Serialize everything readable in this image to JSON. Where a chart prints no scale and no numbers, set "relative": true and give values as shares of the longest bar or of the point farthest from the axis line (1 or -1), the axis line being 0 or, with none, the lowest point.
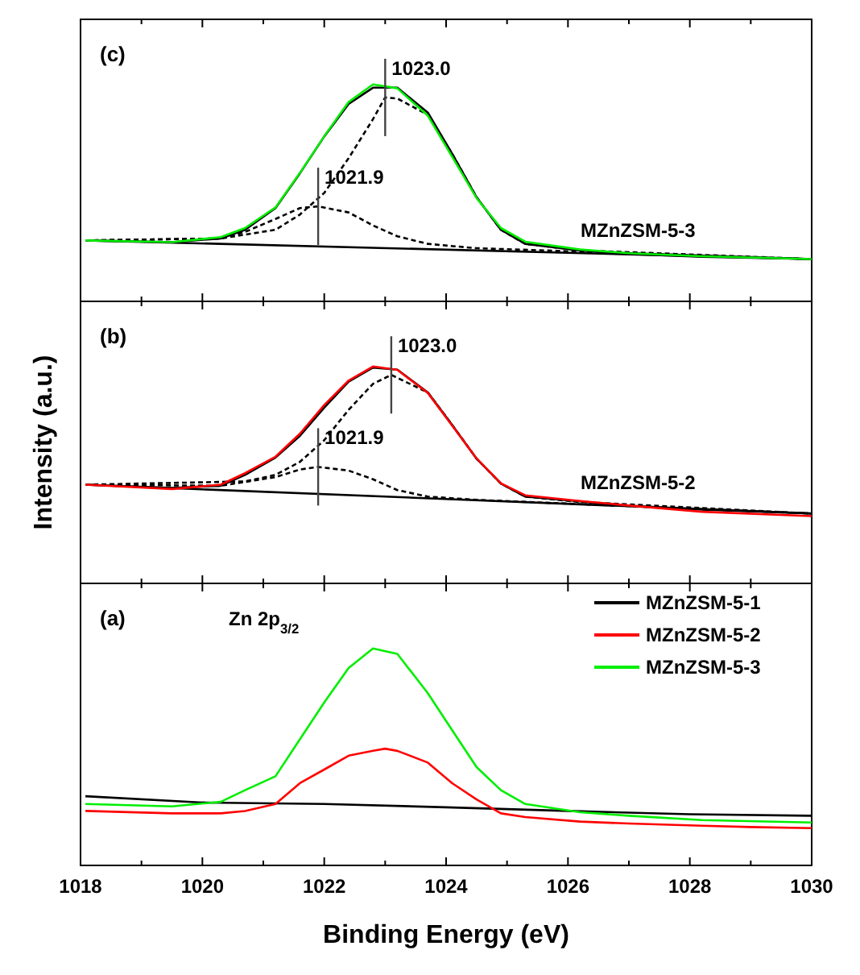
{
  "chart_data": [
    {
      "type": "line",
      "relative": true,
      "legend": false,
      "tick_labels": false,
      "xlim": [
        1018,
        1030
      ],
      "xticks": [
        1018,
        {
          "value": 1019,
          "label": null
        },
        1020,
        {
          "value": 1021,
          "label": null
        },
        1022,
        {
          "value": 1023,
          "label": null
        },
        1024,
        {
          "value": 1025,
          "label": null
        },
        1026,
        {
          "value": 1027,
          "label": null
        },
        1028,
        {
          "value": 1029,
          "label": null
        },
        1030
      ],
      "annotations": [
        "(c)",
        {
          "text": "1023.0",
          "x": 1023.0,
          "y": 0.94
        },
        {
          "text": "1021.9",
          "x": 1021.9,
          "y": 0.438
        }
      ],
      "series": [
        {
          "name": "MZnZSM-5-3",
          "color": "#00ee00",
          "x": [
            1018.08,
            1019.5,
            1020.3,
            1020.7,
            1021.2,
            1021.6,
            1022.0,
            1022.4,
            1022.8,
            1023.2,
            1023.7,
            1024.1,
            1024.5,
            1024.9,
            1025.3,
            1026.2,
            1027.0,
            1028.2,
            1030
          ],
          "values": [
            0.281,
            0.273,
            0.296,
            0.338,
            0.433,
            0.592,
            0.761,
            0.919,
            1.0,
            0.982,
            0.856,
            0.666,
            0.476,
            0.338,
            0.275,
            0.239,
            0.222,
            0.208,
            0.195
          ]
        },
        {
          "color": "#000000",
          "x": [
            1018.08,
            1019.5,
            1020.3,
            1020.7,
            1021.2,
            1021.6,
            1022.0,
            1022.4,
            1022.8,
            1023.2,
            1023.7,
            1024.1,
            1024.5,
            1024.9,
            1025.3,
            1026.2,
            1027.0,
            1028.2,
            1030
          ],
          "values": [
            0.281,
            0.273,
            0.29,
            0.33,
            0.43,
            0.59,
            0.76,
            0.91,
            0.985,
            0.985,
            0.87,
            0.68,
            0.48,
            0.33,
            0.265,
            0.235,
            0.218,
            0.205,
            0.195
          ]
        },
        {
          "color": "#000000",
          "line_style": "dashed",
          "x": [
            1018.08,
            1020.3,
            1021.2,
            1021.6,
            1022.0,
            1022.4,
            1022.8,
            1023.0,
            1023.2,
            1023.7,
            1024.1,
            1024.5,
            1024.9,
            1025.3,
            1026.2,
            1030
          ],
          "values": [
            0.281,
            0.29,
            0.33,
            0.4,
            0.5,
            0.66,
            0.84,
            0.94,
            0.935,
            0.86,
            0.68,
            0.48,
            0.33,
            0.265,
            0.235,
            0.195
          ]
        },
        {
          "color": "#000000",
          "line_style": "dashed",
          "x": [
            1018.08,
            1020.3,
            1020.7,
            1021.2,
            1021.6,
            1021.9,
            1022.4,
            1022.8,
            1023.2,
            1023.7,
            1024.5,
            1030
          ],
          "values": [
            0.281,
            0.29,
            0.32,
            0.38,
            0.43,
            0.438,
            0.41,
            0.35,
            0.3,
            0.265,
            0.245,
            0.195
          ]
        },
        {
          "color": "#000000",
          "x": [
            1018.08,
            1030
          ],
          "values": [
            0.281,
            0.195
          ]
        }
      ]
    },
    {
      "type": "line",
      "relative": true,
      "legend": false,
      "tick_labels": false,
      "ylabel": "Intensity (a.u.)",
      "xlim": [
        1018,
        1030
      ],
      "xticks": [
        1018,
        {
          "value": 1019,
          "label": null
        },
        1020,
        {
          "value": 1021,
          "label": null
        },
        1022,
        {
          "value": 1023,
          "label": null
        },
        1024,
        {
          "value": 1025,
          "label": null
        },
        1026,
        {
          "value": 1027,
          "label": null
        },
        1028,
        {
          "value": 1029,
          "label": null
        },
        1030
      ],
      "annotations": [
        "(b)",
        {
          "text": "1023.0",
          "x": 1023.1,
          "y": 0.961
        },
        {
          "text": "1021.9",
          "x": 1021.9,
          "y": 0.537
        }
      ],
      "series": [
        {
          "name": "MZnZSM-5-2",
          "color": "#ff0000",
          "x": [
            1018.08,
            1019.5,
            1020.3,
            1020.7,
            1021.2,
            1021.6,
            1022.0,
            1022.4,
            1022.8,
            1023.2,
            1023.7,
            1024.1,
            1024.5,
            1024.9,
            1025.3,
            1026.2,
            1027.0,
            1028.2,
            1030
          ],
          "values": [
            0.455,
            0.435,
            0.455,
            0.508,
            0.584,
            0.69,
            0.822,
            0.935,
            1.0,
            0.984,
            0.878,
            0.727,
            0.576,
            0.461,
            0.406,
            0.38,
            0.359,
            0.33,
            0.31
          ]
        },
        {
          "color": "#000000",
          "x": [
            1018.08,
            1019.5,
            1020.3,
            1020.7,
            1021.2,
            1021.6,
            1022.0,
            1022.4,
            1022.8,
            1023.2,
            1023.7,
            1024.1,
            1024.5,
            1024.9,
            1025.3,
            1026.2,
            1027.0,
            1028.2,
            1030
          ],
          "values": [
            0.455,
            0.44,
            0.45,
            0.5,
            0.58,
            0.68,
            0.81,
            0.93,
            0.995,
            0.985,
            0.88,
            0.73,
            0.575,
            0.46,
            0.4,
            0.378,
            0.358,
            0.34,
            0.322
          ]
        },
        {
          "color": "#000000",
          "line_style": "dashed",
          "x": [
            1018.08,
            1020.7,
            1021.2,
            1021.6,
            1022.0,
            1022.4,
            1022.8,
            1023.1,
            1023.7,
            1024.1,
            1024.5,
            1024.9,
            1025.3,
            1026.2,
            1030
          ],
          "values": [
            0.455,
            0.47,
            0.5,
            0.56,
            0.66,
            0.8,
            0.92,
            0.961,
            0.88,
            0.73,
            0.575,
            0.46,
            0.4,
            0.375,
            0.322
          ]
        },
        {
          "color": "#000000",
          "line_style": "dashed",
          "x": [
            1018.08,
            1020.3,
            1021.2,
            1021.6,
            1021.9,
            1022.4,
            1022.8,
            1023.2,
            1023.7,
            1024.5,
            1030
          ],
          "values": [
            0.455,
            0.45,
            0.49,
            0.525,
            0.537,
            0.52,
            0.48,
            0.43,
            0.4,
            0.385,
            0.322
          ]
        },
        {
          "color": "#000000",
          "x": [
            1018.08,
            1030
          ],
          "values": [
            0.455,
            0.322
          ]
        }
      ]
    },
    {
      "type": "line",
      "relative": true,
      "legend": "top right",
      "xlabel": "Binding Energy (eV)",
      "xlim": [
        1018,
        1030
      ],
      "xticks": [
        1018,
        {
          "value": 1019,
          "label": null
        },
        1020,
        {
          "value": 1021,
          "label": null
        },
        1022,
        {
          "value": 1023,
          "label": null
        },
        1024,
        {
          "value": 1025,
          "label": null
        },
        1026,
        {
          "value": 1027,
          "label": null
        },
        1028,
        {
          "value": 1029,
          "label": null
        },
        1030
      ],
      "annotations": [
        "(a)",
        "Zn 2p$_{3/2}$"
      ],
      "series": [
        {
          "name": "MZnZSM-5-1",
          "color": "#000000",
          "x": [
            1018.08,
            1020,
            1022,
            1024,
            1026,
            1028,
            1030
          ],
          "values": [
            0.319,
            0.29,
            0.283,
            0.268,
            0.251,
            0.236,
            0.229
          ]
        },
        {
          "name": "MZnZSM-5-2",
          "color": "#ff0000",
          "x": [
            1018.08,
            1019.5,
            1020.3,
            1020.7,
            1021.2,
            1021.6,
            1022.0,
            1022.4,
            1022.8,
            1023.0,
            1023.2,
            1023.7,
            1024.1,
            1024.5,
            1024.9,
            1025.3,
            1026.2,
            1027.0,
            1028.2,
            1029,
            1030
          ],
          "values": [
            0.251,
            0.24,
            0.24,
            0.251,
            0.283,
            0.379,
            0.442,
            0.506,
            0.528,
            0.538,
            0.528,
            0.474,
            0.379,
            0.304,
            0.24,
            0.223,
            0.202,
            0.193,
            0.183,
            0.177,
            0.172
          ]
        },
        {
          "name": "MZnZSM-5-3",
          "color": "#00ee00",
          "x": [
            1018.08,
            1019.5,
            1020.3,
            1020.7,
            1021.2,
            1021.6,
            1022.0,
            1022.4,
            1022.8,
            1023.2,
            1023.7,
            1024.1,
            1024.5,
            1024.9,
            1025.3,
            1026.2,
            1027.0,
            1028.2,
            1030
          ],
          "values": [
            0.283,
            0.272,
            0.293,
            0.347,
            0.411,
            0.581,
            0.751,
            0.91,
            1.0,
            0.975,
            0.794,
            0.623,
            0.453,
            0.347,
            0.283,
            0.245,
            0.229,
            0.209,
            0.198
          ]
        }
      ]
    }
  ]
}
